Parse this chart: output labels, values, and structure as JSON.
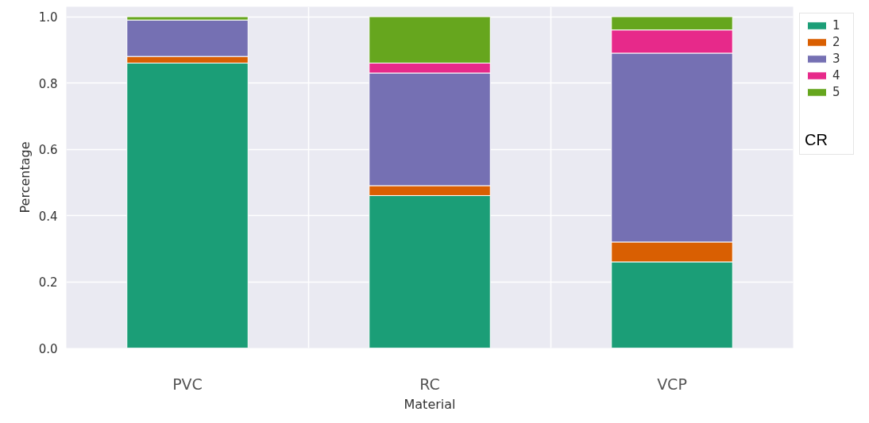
{
  "chart_data": {
    "type": "bar",
    "stacked": true,
    "xlabel": "Material",
    "ylabel": "Percentage",
    "legend_title": "CR",
    "categories": [
      "PVC",
      "RC",
      "VCP"
    ],
    "series": [
      {
        "name": "1",
        "color": "#1b9e77",
        "values": [
          0.86,
          0.46,
          0.26
        ]
      },
      {
        "name": "2",
        "color": "#d95f02",
        "values": [
          0.02,
          0.03,
          0.06
        ]
      },
      {
        "name": "3",
        "color": "#7570b3",
        "values": [
          0.11,
          0.34,
          0.57
        ]
      },
      {
        "name": "4",
        "color": "#e7298a",
        "values": [
          0.0,
          0.03,
          0.07
        ]
      },
      {
        "name": "5",
        "color": "#66a61e",
        "values": [
          0.01,
          0.14,
          0.04
        ]
      }
    ],
    "ylim": [
      0,
      1.03
    ],
    "yticks": [
      {
        "value": 0,
        "label": "0.0"
      },
      0.2,
      0.4,
      0.6,
      0.8,
      {
        "value": 1,
        "label": "1.0"
      }
    ],
    "grid": true,
    "legend": "top right"
  }
}
